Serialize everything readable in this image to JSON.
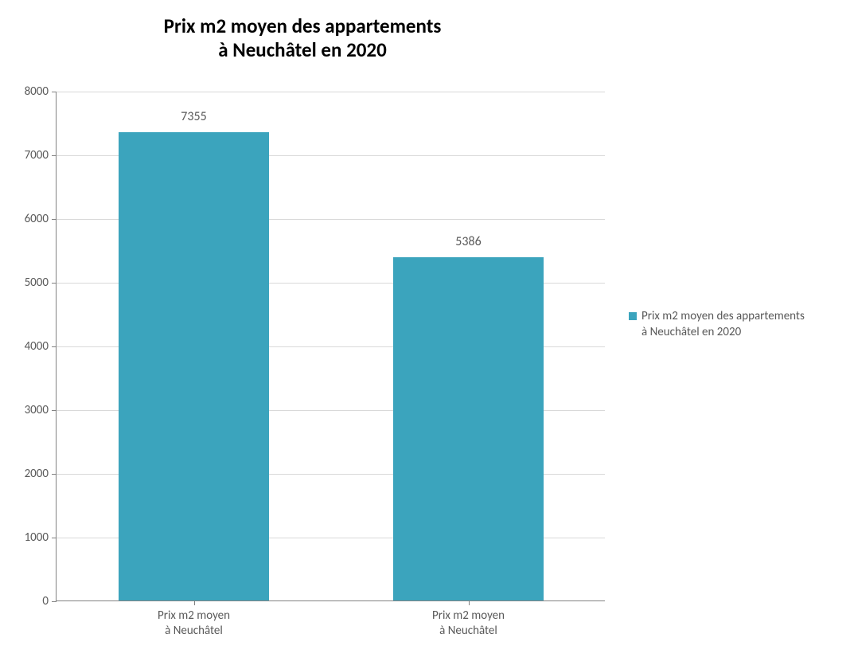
{
  "chart": {
    "type": "bar",
    "title_line1": "Prix m2 moyen des appartements",
    "title_line2": "à Neuchâtel en 2020",
    "title_fontsize": 25,
    "title_color": "#000000",
    "background_color": "#ffffff",
    "axis_line_color": "#828282",
    "grid_color": "#d9d9d9",
    "tick_label_color": "#595959",
    "tick_fontsize": 15,
    "y": {
      "min": 0,
      "max": 8000,
      "step": 1000,
      "ticks": [
        0,
        1000,
        2000,
        3000,
        4000,
        5000,
        6000,
        7000,
        8000
      ]
    },
    "x": {
      "categories": [
        {
          "line1": "Prix m2 moyen",
          "line2": "à Neuchâtel"
        },
        {
          "line1": "Prix m2 moyen",
          "line2": "à Neuchâtel"
        }
      ]
    },
    "series": {
      "name_line1": "Prix m2 moyen des appartements",
      "name_line2": "à Neuchâtel en 2020",
      "color": "#3ba4bd",
      "bar_width_fraction": 0.55,
      "data_label_fontsize": 16,
      "data_label_color": "#595959",
      "values": [
        7355,
        5386
      ]
    },
    "legend": {
      "fontsize": 15,
      "swatch_color": "#3ba4bd",
      "text_color": "#595959"
    }
  }
}
